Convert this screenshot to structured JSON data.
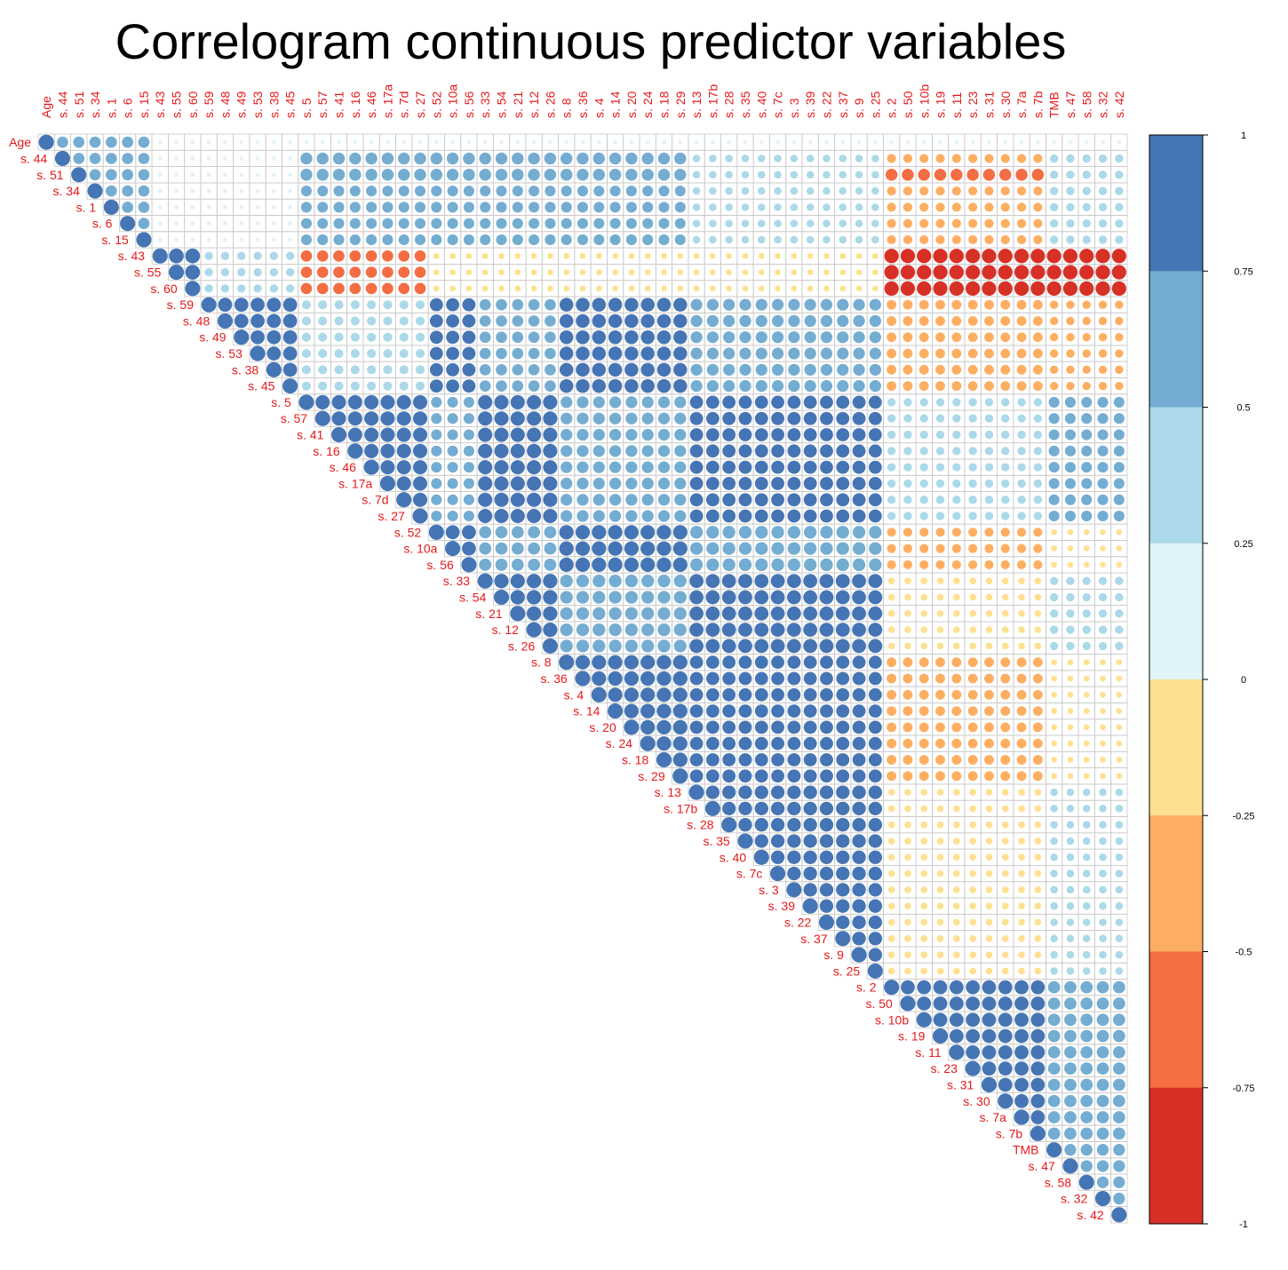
{
  "chart_data": {
    "type": "heatmap",
    "title": "Correlogram continuous predictor variables",
    "variables": [
      "Age",
      "s. 44",
      "s. 51",
      "s. 34",
      "s. 1",
      "s. 6",
      "s. 15",
      "s. 43",
      "s. 55",
      "s. 60",
      "s. 59",
      "s. 48",
      "s. 49",
      "s. 53",
      "s. 38",
      "s. 45",
      "s. 5",
      "s. 57",
      "s. 41",
      "s. 16",
      "s. 46",
      "s. 17a",
      "s. 7d",
      "s. 27",
      "s. 52",
      "s. 10a",
      "s. 56",
      "s. 33",
      "s. 54",
      "s. 21",
      "s. 12",
      "s. 26",
      "s. 8",
      "s. 36",
      "s. 4",
      "s. 14",
      "s. 20",
      "s. 24",
      "s. 18",
      "s. 29",
      "s. 13",
      "s. 17b",
      "s. 28",
      "s. 35",
      "s. 40",
      "s. 7c",
      "s. 3",
      "s. 39",
      "s. 22",
      "s. 37",
      "s. 9",
      "s. 25",
      "s. 2",
      "s. 50",
      "s. 10b",
      "s. 19",
      "s. 11",
      "s. 23",
      "s. 31",
      "s. 30",
      "s. 7a",
      "s. 7b",
      "TMB",
      "s. 47",
      "s. 58",
      "s. 32",
      "s. 42"
    ],
    "matrix_shape": "upper-triangular",
    "glyph": "circle (area proportional to |r|)",
    "color_scale": {
      "ticks": [
        1,
        0.75,
        0.5,
        0.25,
        0,
        -0.25,
        -0.5,
        -0.75,
        -1
      ],
      "tick_labels": [
        "1",
        "0.75",
        "0.5",
        "0.25",
        "0",
        "-0.25",
        "-0.5",
        "-0.75",
        "-1"
      ],
      "bins": [
        {
          "range": [
            0.75,
            1
          ],
          "color": "#4575B4"
        },
        {
          "range": [
            0.5,
            0.75
          ],
          "color": "#74ADD1"
        },
        {
          "range": [
            0.25,
            0.5
          ],
          "color": "#ABD9E9"
        },
        {
          "range": [
            0,
            0.25
          ],
          "color": "#E0F3F8"
        },
        {
          "range": [
            -0.25,
            0
          ],
          "color": "#FEE090"
        },
        {
          "range": [
            -0.5,
            -0.25
          ],
          "color": "#FDAE61"
        },
        {
          "range": [
            -0.75,
            -0.5
          ],
          "color": "#F46D43"
        },
        {
          "range": [
            -1,
            -0.75
          ],
          "color": "#D73027"
        }
      ]
    },
    "blocks": [
      {
        "rows": [
          0,
          6
        ],
        "cols": [
          0,
          6
        ],
        "r": 0.55
      },
      {
        "rows": [
          7,
          9
        ],
        "cols": [
          7,
          9
        ],
        "r": 0.95
      },
      {
        "rows": [
          10,
          15
        ],
        "cols": [
          10,
          15
        ],
        "r": 0.85
      },
      {
        "rows": [
          16,
          23
        ],
        "cols": [
          16,
          23
        ],
        "r": 0.88
      },
      {
        "rows": [
          24,
          26
        ],
        "cols": [
          24,
          26
        ],
        "r": 0.85
      },
      {
        "rows": [
          27,
          31
        ],
        "cols": [
          27,
          31
        ],
        "r": 0.9
      },
      {
        "rows": [
          32,
          39
        ],
        "cols": [
          32,
          39
        ],
        "r": 0.9
      },
      {
        "rows": [
          40,
          42
        ],
        "cols": [
          40,
          42
        ],
        "r": 0.8
      },
      {
        "rows": [
          43,
          51
        ],
        "cols": [
          43,
          51
        ],
        "r": 0.8
      },
      {
        "rows": [
          52,
          61
        ],
        "cols": [
          52,
          61
        ],
        "r": 0.85
      },
      {
        "rows": [
          62,
          66
        ],
        "cols": [
          62,
          66
        ],
        "r": 0.6
      },
      {
        "rows": [
          1,
          6
        ],
        "cols": [
          16,
          39
        ],
        "r": 0.5
      },
      {
        "rows": [
          1,
          2
        ],
        "cols": [
          16,
          39
        ],
        "r": 0.62
      },
      {
        "rows": [
          1,
          6
        ],
        "cols": [
          40,
          51
        ],
        "r": 0.25
      },
      {
        "rows": [
          1,
          6
        ],
        "cols": [
          52,
          61
        ],
        "r": -0.35
      },
      {
        "rows": [
          2,
          2
        ],
        "cols": [
          52,
          61
        ],
        "r": -0.62
      },
      {
        "rows": [
          1,
          6
        ],
        "cols": [
          62,
          66
        ],
        "r": 0.3
      },
      {
        "rows": [
          7,
          9
        ],
        "cols": [
          10,
          15
        ],
        "r": 0.3
      },
      {
        "rows": [
          7,
          9
        ],
        "cols": [
          16,
          23
        ],
        "r": -0.55
      },
      {
        "rows": [
          7,
          9
        ],
        "cols": [
          24,
          51
        ],
        "r": -0.15
      },
      {
        "rows": [
          7,
          9
        ],
        "cols": [
          52,
          66
        ],
        "r": -0.9
      },
      {
        "rows": [
          10,
          15
        ],
        "cols": [
          16,
          23
        ],
        "r": 0.35
      },
      {
        "rows": [
          10,
          15
        ],
        "cols": [
          24,
          26
        ],
        "r": 0.75
      },
      {
        "rows": [
          10,
          15
        ],
        "cols": [
          27,
          31
        ],
        "r": 0.55
      },
      {
        "rows": [
          10,
          15
        ],
        "cols": [
          32,
          39
        ],
        "r": 0.82
      },
      {
        "rows": [
          10,
          15
        ],
        "cols": [
          40,
          51
        ],
        "r": 0.6
      },
      {
        "rows": [
          10,
          15
        ],
        "cols": [
          52,
          61
        ],
        "r": -0.4
      },
      {
        "rows": [
          10,
          15
        ],
        "cols": [
          62,
          66
        ],
        "r": -0.3
      },
      {
        "rows": [
          16,
          23
        ],
        "cols": [
          24,
          26
        ],
        "r": 0.5
      },
      {
        "rows": [
          16,
          23
        ],
        "cols": [
          27,
          31
        ],
        "r": 0.88
      },
      {
        "rows": [
          16,
          23
        ],
        "cols": [
          32,
          39
        ],
        "r": 0.6
      },
      {
        "rows": [
          16,
          23
        ],
        "cols": [
          40,
          51
        ],
        "r": 0.75
      },
      {
        "rows": [
          16,
          23
        ],
        "cols": [
          52,
          61
        ],
        "r": 0.3
      },
      {
        "rows": [
          16,
          23
        ],
        "cols": [
          62,
          66
        ],
        "r": 0.5
      },
      {
        "rows": [
          24,
          26
        ],
        "cols": [
          27,
          31
        ],
        "r": 0.65
      },
      {
        "rows": [
          24,
          26
        ],
        "cols": [
          32,
          39
        ],
        "r": 0.9
      },
      {
        "rows": [
          24,
          26
        ],
        "cols": [
          40,
          51
        ],
        "r": 0.7
      },
      {
        "rows": [
          24,
          26
        ],
        "cols": [
          52,
          61
        ],
        "r": -0.35
      },
      {
        "rows": [
          24,
          26
        ],
        "cols": [
          62,
          66
        ],
        "r": -0.15
      },
      {
        "rows": [
          27,
          31
        ],
        "cols": [
          32,
          39
        ],
        "r": 0.7
      },
      {
        "rows": [
          27,
          31
        ],
        "cols": [
          40,
          51
        ],
        "r": 0.85
      },
      {
        "rows": [
          27,
          31
        ],
        "cols": [
          52,
          61
        ],
        "r": -0.2
      },
      {
        "rows": [
          27,
          31
        ],
        "cols": [
          62,
          66
        ],
        "r": 0.3
      },
      {
        "rows": [
          32,
          39
        ],
        "cols": [
          40,
          51
        ],
        "r": 0.75
      },
      {
        "rows": [
          32,
          39
        ],
        "cols": [
          52,
          61
        ],
        "r": -0.4
      },
      {
        "rows": [
          32,
          39
        ],
        "cols": [
          62,
          66
        ],
        "r": -0.15
      },
      {
        "rows": [
          40,
          42
        ],
        "cols": [
          43,
          51
        ],
        "r": 0.8
      },
      {
        "rows": [
          40,
          51
        ],
        "cols": [
          52,
          61
        ],
        "r": -0.2
      },
      {
        "rows": [
          40,
          51
        ],
        "cols": [
          62,
          66
        ],
        "r": 0.25
      },
      {
        "rows": [
          52,
          61
        ],
        "cols": [
          62,
          66
        ],
        "r": 0.65
      }
    ]
  }
}
